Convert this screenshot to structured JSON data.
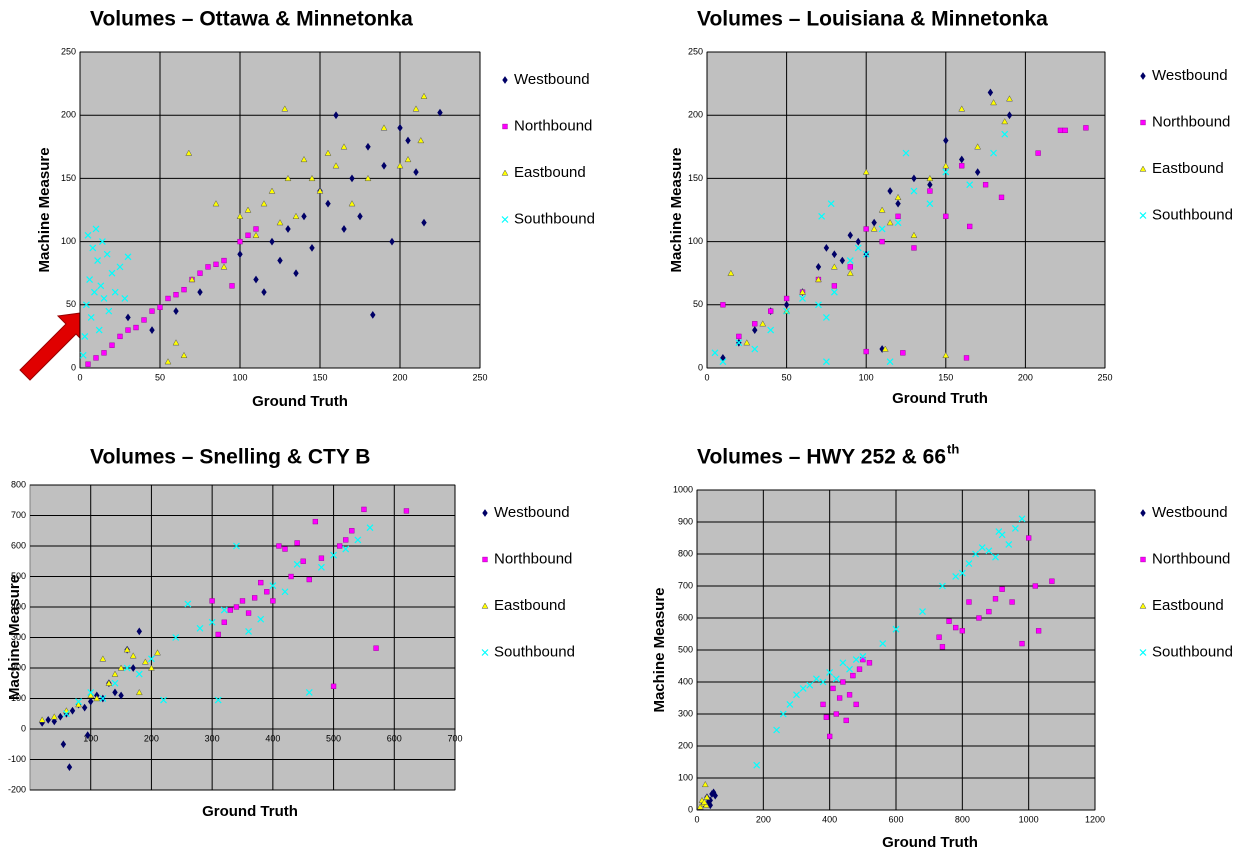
{
  "chart_data": [
    {
      "type": "scatter",
      "title": "Volumes – Ottawa & Minnetonka",
      "xlabel": "Ground Truth",
      "ylabel": "Machine Measure",
      "xlim": [
        0,
        250
      ],
      "ylim": [
        0,
        250
      ],
      "xticks": [
        0,
        50,
        100,
        150,
        200,
        250
      ],
      "yticks": [
        0,
        50,
        100,
        150,
        200,
        250
      ],
      "grid": true,
      "series": [
        {
          "name": "Westbound",
          "color": "#000066",
          "marker": "diamond",
          "x": [
            30,
            45,
            60,
            75,
            100,
            110,
            115,
            120,
            125,
            130,
            135,
            140,
            145,
            150,
            155,
            160,
            165,
            170,
            175,
            180,
            183,
            190,
            195,
            200,
            205,
            210,
            215,
            225
          ],
          "y": [
            40,
            30,
            45,
            60,
            90,
            70,
            60,
            100,
            85,
            110,
            75,
            120,
            95,
            140,
            130,
            200,
            110,
            150,
            120,
            175,
            42,
            160,
            100,
            190,
            180,
            155,
            115,
            202
          ]
        },
        {
          "name": "Northbound",
          "color": "#ff00ff",
          "marker": "square",
          "x": [
            5,
            10,
            15,
            20,
            25,
            30,
            35,
            40,
            45,
            50,
            55,
            60,
            65,
            70,
            75,
            80,
            85,
            90,
            95,
            100,
            105,
            110
          ],
          "y": [
            3,
            8,
            12,
            18,
            25,
            30,
            32,
            38,
            45,
            48,
            55,
            58,
            62,
            70,
            75,
            80,
            82,
            85,
            65,
            100,
            105,
            110
          ]
        },
        {
          "name": "Eastbound",
          "color": "#ffff00",
          "marker": "triangle",
          "x": [
            55,
            60,
            65,
            68,
            70,
            85,
            90,
            100,
            105,
            110,
            115,
            120,
            125,
            128,
            130,
            135,
            140,
            145,
            150,
            155,
            160,
            165,
            170,
            180,
            190,
            200,
            205,
            210,
            213,
            215
          ],
          "y": [
            5,
            20,
            10,
            170,
            70,
            130,
            80,
            120,
            125,
            105,
            130,
            140,
            115,
            205,
            150,
            120,
            165,
            150,
            140,
            170,
            160,
            175,
            130,
            150,
            190,
            160,
            165,
            205,
            180,
            215
          ]
        },
        {
          "name": "Southbound",
          "color": "#00ffff",
          "marker": "cross",
          "x": [
            2,
            3,
            4,
            5,
            6,
            7,
            8,
            9,
            10,
            11,
            12,
            13,
            14,
            15,
            17,
            18,
            20,
            22,
            25,
            28,
            30
          ],
          "y": [
            10,
            25,
            50,
            105,
            70,
            40,
            95,
            60,
            110,
            85,
            30,
            65,
            100,
            55,
            90,
            45,
            75,
            60,
            80,
            55,
            88
          ]
        }
      ]
    },
    {
      "type": "scatter",
      "title": "Volumes – Louisiana & Minnetonka",
      "xlabel": "Ground Truth",
      "ylabel": "Machine Measure",
      "xlim": [
        0,
        250
      ],
      "ylim": [
        0,
        250
      ],
      "xticks": [
        0,
        50,
        100,
        150,
        200,
        250
      ],
      "yticks": [
        0,
        50,
        100,
        150,
        200,
        250
      ],
      "grid": true,
      "series": [
        {
          "name": "Westbound",
          "color": "#000066",
          "marker": "diamond",
          "x": [
            10,
            20,
            30,
            40,
            50,
            60,
            70,
            75,
            80,
            85,
            90,
            95,
            100,
            105,
            110,
            115,
            120,
            130,
            140,
            150,
            160,
            170,
            178,
            190
          ],
          "y": [
            8,
            20,
            30,
            45,
            50,
            60,
            80,
            95,
            90,
            85,
            105,
            100,
            90,
            115,
            15,
            140,
            130,
            150,
            145,
            180,
            165,
            155,
            218,
            200
          ]
        },
        {
          "name": "Northbound",
          "color": "#ff00ff",
          "marker": "square",
          "x": [
            10,
            20,
            30,
            40,
            50,
            60,
            70,
            80,
            90,
            100,
            110,
            120,
            130,
            140,
            150,
            160,
            165,
            175,
            185,
            208,
            222,
            225,
            238,
            100,
            123,
            163
          ],
          "y": [
            50,
            25,
            35,
            45,
            55,
            60,
            70,
            65,
            80,
            110,
            100,
            120,
            95,
            140,
            120,
            160,
            112,
            145,
            135,
            170,
            188,
            188,
            190,
            13,
            12,
            8
          ]
        },
        {
          "name": "Eastbound",
          "color": "#ffff00",
          "marker": "triangle",
          "x": [
            15,
            25,
            35,
            50,
            60,
            70,
            80,
            90,
            100,
            105,
            110,
            115,
            120,
            130,
            140,
            150,
            160,
            170,
            180,
            187,
            190,
            112,
            150
          ],
          "y": [
            75,
            20,
            35,
            45,
            60,
            70,
            80,
            75,
            155,
            110,
            125,
            115,
            135,
            105,
            150,
            160,
            205,
            175,
            210,
            195,
            213,
            15,
            10
          ]
        },
        {
          "name": "Southbound",
          "color": "#00ffff",
          "marker": "cross",
          "x": [
            5,
            10,
            20,
            30,
            40,
            50,
            60,
            70,
            72,
            75,
            78,
            80,
            90,
            95,
            100,
            110,
            115,
            120,
            125,
            130,
            140,
            150,
            165,
            180,
            187,
            75
          ],
          "y": [
            12,
            5,
            20,
            15,
            30,
            45,
            55,
            50,
            120,
            40,
            130,
            60,
            85,
            95,
            90,
            110,
            5,
            115,
            170,
            140,
            130,
            155,
            145,
            170,
            185,
            5
          ]
        }
      ]
    },
    {
      "type": "scatter",
      "title": "Volumes – Snelling & CTY B",
      "xlabel": "Ground Truth",
      "ylabel": "Machine Measure",
      "xlim": [
        0,
        700
      ],
      "ylim": [
        -200,
        800
      ],
      "xticks": [
        100,
        200,
        300,
        400,
        500,
        600,
        700
      ],
      "yticks": [
        -200,
        -100,
        0,
        100,
        200,
        300,
        400,
        500,
        600,
        700,
        800
      ],
      "grid": true,
      "series": [
        {
          "name": "Westbound",
          "color": "#000066",
          "marker": "diamond",
          "x": [
            20,
            30,
            40,
            50,
            60,
            70,
            80,
            90,
            100,
            110,
            120,
            130,
            140,
            150,
            160,
            170,
            180,
            55,
            65,
            95
          ],
          "y": [
            20,
            30,
            25,
            40,
            50,
            60,
            80,
            70,
            90,
            110,
            100,
            150,
            120,
            110,
            260,
            200,
            320,
            -50,
            -125,
            -20
          ]
        },
        {
          "name": "Northbound",
          "color": "#ff00ff",
          "marker": "square",
          "x": [
            300,
            310,
            320,
            330,
            340,
            350,
            360,
            370,
            380,
            390,
            400,
            410,
            420,
            430,
            440,
            450,
            460,
            470,
            480,
            500,
            510,
            520,
            530,
            550,
            570,
            620
          ],
          "y": [
            420,
            310,
            350,
            390,
            400,
            420,
            380,
            430,
            480,
            450,
            420,
            600,
            590,
            500,
            610,
            550,
            490,
            680,
            560,
            140,
            600,
            620,
            650,
            720,
            265,
            715
          ]
        },
        {
          "name": "Eastbound",
          "color": "#ffff00",
          "marker": "triangle",
          "x": [
            20,
            40,
            60,
            80,
            100,
            110,
            120,
            130,
            140,
            150,
            160,
            170,
            180,
            190,
            200,
            210
          ],
          "y": [
            30,
            40,
            60,
            80,
            110,
            100,
            230,
            150,
            180,
            200,
            260,
            240,
            120,
            220,
            200,
            250
          ]
        },
        {
          "name": "Southbound",
          "color": "#00ffff",
          "marker": "cross",
          "x": [
            60,
            80,
            100,
            120,
            140,
            160,
            180,
            200,
            220,
            240,
            260,
            280,
            300,
            310,
            320,
            340,
            360,
            380,
            400,
            420,
            440,
            460,
            480,
            500,
            520,
            540,
            560
          ],
          "y": [
            50,
            90,
            120,
            100,
            150,
            200,
            180,
            230,
            95,
            300,
            410,
            330,
            350,
            95,
            390,
            600,
            320,
            360,
            470,
            450,
            540,
            120,
            530,
            570,
            590,
            620,
            660
          ]
        }
      ]
    },
    {
      "type": "scatter",
      "title": "Volumes – HWY 252 & 66",
      "title_superscript": "th",
      "xlabel": "Ground Truth",
      "ylabel": "Machine Measure",
      "xlim": [
        0,
        1200
      ],
      "ylim": [
        0,
        1000
      ],
      "xticks": [
        0,
        200,
        400,
        600,
        800,
        1000,
        1200
      ],
      "yticks": [
        0,
        100,
        200,
        300,
        400,
        500,
        600,
        700,
        800,
        900,
        1000
      ],
      "grid": true,
      "series": [
        {
          "name": "Westbound",
          "color": "#000066",
          "marker": "diamond",
          "x": [
            20,
            30,
            40,
            45,
            50,
            55,
            40,
            35
          ],
          "y": [
            20,
            40,
            30,
            50,
            55,
            45,
            15,
            25
          ]
        },
        {
          "name": "Northbound",
          "color": "#ff00ff",
          "marker": "square",
          "x": [
            380,
            390,
            400,
            410,
            420,
            430,
            440,
            450,
            460,
            470,
            480,
            490,
            500,
            520,
            730,
            740,
            760,
            780,
            800,
            820,
            850,
            880,
            900,
            920,
            950,
            980,
            1000,
            1020,
            1030,
            1070
          ],
          "y": [
            330,
            290,
            230,
            380,
            300,
            350,
            400,
            280,
            360,
            420,
            330,
            440,
            470,
            460,
            540,
            510,
            590,
            570,
            560,
            650,
            600,
            620,
            660,
            690,
            650,
            520,
            850,
            700,
            560,
            715
          ]
        },
        {
          "name": "Eastbound",
          "color": "#ffff00",
          "marker": "triangle",
          "x": [
            10,
            15,
            20,
            25,
            30,
            28,
            22
          ],
          "y": [
            10,
            30,
            20,
            80,
            40,
            15,
            25
          ]
        },
        {
          "name": "Southbound",
          "color": "#00ffff",
          "marker": "cross",
          "x": [
            180,
            240,
            260,
            280,
            300,
            320,
            340,
            360,
            380,
            400,
            420,
            440,
            460,
            480,
            500,
            560,
            600,
            680,
            740,
            780,
            800,
            820,
            840,
            860,
            880,
            900,
            920,
            940,
            960,
            980,
            910
          ],
          "y": [
            140,
            250,
            300,
            330,
            360,
            380,
            390,
            410,
            400,
            430,
            410,
            460,
            440,
            470,
            480,
            520,
            565,
            620,
            700,
            730,
            740,
            770,
            800,
            820,
            810,
            790,
            860,
            830,
            880,
            910,
            870
          ]
        }
      ]
    }
  ]
}
